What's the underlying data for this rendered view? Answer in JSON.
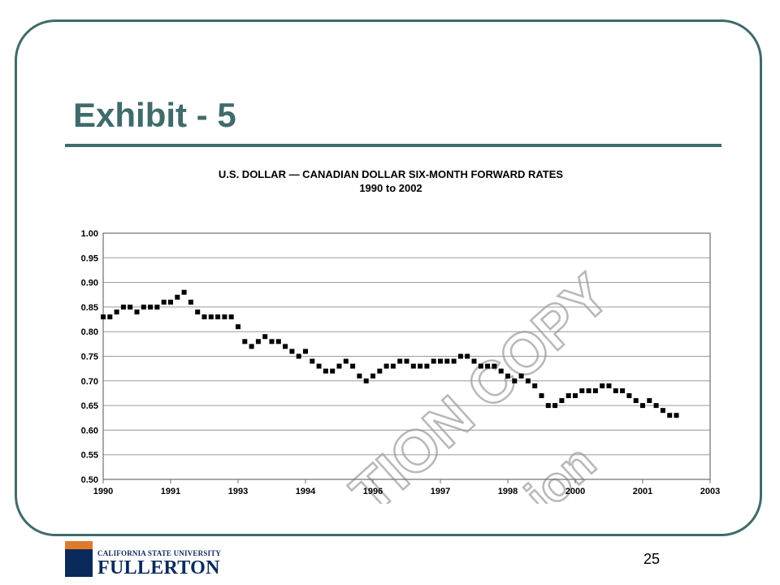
{
  "slide": {
    "title": "Exhibit - 5",
    "page_number": "25"
  },
  "logo": {
    "line1": "CALIFORNIA STATE UNIVERSITY",
    "line2": "FULLERTON"
  },
  "colors": {
    "accent": "#3f6b6a",
    "series": "#000000",
    "grid": "#9a9a9a",
    "logo_navy": "#0a2a5c",
    "logo_orange": "#e07a2b"
  },
  "chart_data": {
    "type": "scatter",
    "title": "U.S. DOLLAR — CANADIAN DOLLAR SIX-MONTH FORWARD RATES",
    "subtitle": "1990 to 2002",
    "xlabel": "",
    "ylabel": "",
    "ylim": [
      0.5,
      1.0
    ],
    "yticks": [
      "1.00",
      "0.95",
      "0.90",
      "0.85",
      "0.80",
      "0.75",
      "0.70",
      "0.65",
      "0.60",
      "0.55",
      "0.50"
    ],
    "xticks": [
      "1990",
      "1991",
      "1993",
      "1994",
      "1996",
      "1997",
      "1998",
      "2000",
      "2001",
      "2003"
    ],
    "grid": true,
    "legend": "none",
    "watermark_lines": [
      "TION COPY",
      "ion"
    ],
    "series": [
      {
        "x": [
          0.0,
          0.1,
          0.2,
          0.3,
          0.4,
          0.5,
          0.6,
          0.7,
          0.8,
          0.9,
          1.0,
          1.1,
          1.2,
          1.3,
          1.4,
          1.5,
          1.6,
          1.7,
          1.8,
          1.9,
          2.0,
          2.1,
          2.2,
          2.3,
          2.4,
          2.5,
          2.6,
          2.7,
          2.8,
          2.9,
          3.0,
          3.1,
          3.2,
          3.3,
          3.4,
          3.5,
          3.6,
          3.7,
          3.8,
          3.9,
          4.0,
          4.1,
          4.2,
          4.3,
          4.4,
          4.5,
          4.6,
          4.7,
          4.8,
          4.9,
          5.0,
          5.1,
          5.2,
          5.3,
          5.4,
          5.5,
          5.6,
          5.7,
          5.8,
          5.9,
          6.0,
          6.1,
          6.2,
          6.3,
          6.4,
          6.5,
          6.6,
          6.7,
          6.8,
          6.9,
          7.0,
          7.1,
          7.2,
          7.3,
          7.4,
          7.5,
          7.6,
          7.7,
          7.8,
          7.9,
          8.0,
          8.1,
          8.2,
          8.3,
          8.4,
          8.5
        ],
        "y": [
          0.83,
          0.83,
          0.84,
          0.85,
          0.85,
          0.84,
          0.85,
          0.85,
          0.85,
          0.86,
          0.86,
          0.87,
          0.88,
          0.86,
          0.84,
          0.83,
          0.83,
          0.83,
          0.83,
          0.83,
          0.81,
          0.78,
          0.77,
          0.78,
          0.79,
          0.78,
          0.78,
          0.77,
          0.76,
          0.75,
          0.76,
          0.74,
          0.73,
          0.72,
          0.72,
          0.73,
          0.74,
          0.73,
          0.71,
          0.7,
          0.71,
          0.72,
          0.73,
          0.73,
          0.74,
          0.74,
          0.73,
          0.73,
          0.73,
          0.74,
          0.74,
          0.74,
          0.74,
          0.75,
          0.75,
          0.74,
          0.73,
          0.73,
          0.73,
          0.72,
          0.71,
          0.7,
          0.71,
          0.7,
          0.69,
          0.67,
          0.65,
          0.65,
          0.66,
          0.67,
          0.67,
          0.68,
          0.68,
          0.68,
          0.69,
          0.69,
          0.68,
          0.68,
          0.67,
          0.66,
          0.65,
          0.66,
          0.65,
          0.64,
          0.63,
          0.63
        ]
      }
    ]
  }
}
